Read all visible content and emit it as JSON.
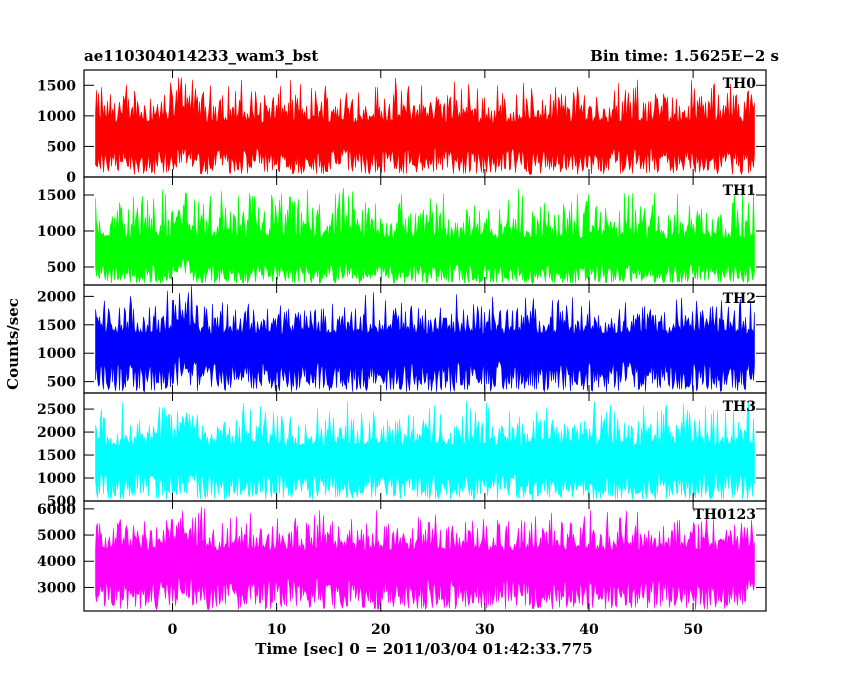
{
  "chart_data": {
    "type": "line",
    "title": "ae110304014233_wam3_bst",
    "bin_time_label": "Bin time: 1.5625E−2 s",
    "xlabel": "Time [sec] 0 = 2011/03/04 01:42:33.775",
    "ylabel": "Counts/sec",
    "xlim": [
      -8.5,
      57
    ],
    "x_data_range": [
      -7.4,
      55.9
    ],
    "x_ticks": [
      0,
      10,
      20,
      30,
      40,
      50
    ],
    "x_tick_labels": [
      "0",
      "10",
      "20",
      "30",
      "40",
      "50"
    ],
    "grid": false,
    "series": [
      {
        "name": "TH0",
        "color": "#ff0000",
        "ylim": [
          0,
          1750
        ],
        "yticks": [
          0,
          500,
          1000,
          1500
        ],
        "ytick_labels": [
          "0",
          "500",
          "1000",
          "1500"
        ],
        "approx_mean": 700,
        "approx_min": 40,
        "approx_max": 1750
      },
      {
        "name": "TH1",
        "color": "#00ff00",
        "ylim": [
          250,
          1750
        ],
        "yticks": [
          500,
          1000,
          1500
        ],
        "ytick_labels": [
          "500",
          "1000",
          "1500"
        ],
        "approx_mean": 700,
        "approx_min": 270,
        "approx_max": 1750
      },
      {
        "name": "TH2",
        "color": "#0000ff",
        "ylim": [
          300,
          2200
        ],
        "yticks": [
          500,
          1000,
          1500,
          2000
        ],
        "ytick_labels": [
          "500",
          "1000",
          "1500",
          "2000"
        ],
        "approx_mean": 1150,
        "approx_min": 320,
        "approx_max": 2200
      },
      {
        "name": "TH3",
        "color": "#00ffff",
        "ylim": [
          500,
          2850
        ],
        "yticks": [
          500,
          1000,
          1500,
          2000,
          2500
        ],
        "ytick_labels": [
          "500",
          "1000",
          "1500",
          "2000",
          "2500"
        ],
        "approx_mean": 1450,
        "approx_min": 520,
        "approx_max": 2850
      },
      {
        "name": "TH0123",
        "color": "#ff00ff",
        "ylim": [
          2100,
          6300
        ],
        "yticks": [
          3000,
          4000,
          5000,
          6000
        ],
        "ytick_labels": [
          "3000",
          "4000",
          "5000",
          "6000"
        ],
        "approx_mean": 4000,
        "approx_min": 2150,
        "approx_max": 6300
      }
    ]
  }
}
